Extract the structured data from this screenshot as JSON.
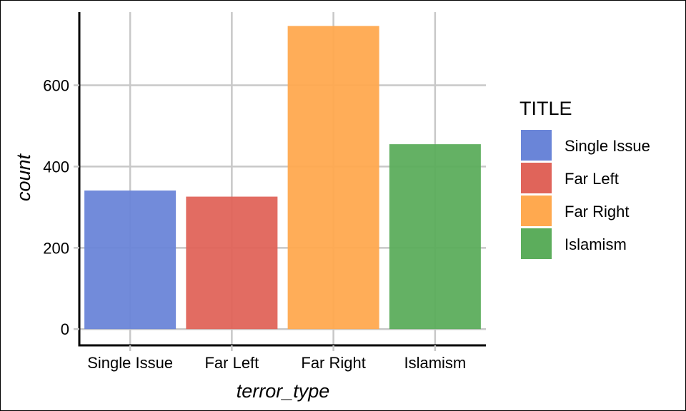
{
  "chart_data": {
    "type": "bar",
    "categories": [
      "Single Issue",
      "Far Left",
      "Far Right",
      "Islamism"
    ],
    "values": [
      341,
      326,
      746,
      455
    ],
    "xlabel": "terror_type",
    "ylabel": "count",
    "ylim": [
      -40,
      780
    ],
    "yticks": [
      0,
      200,
      400,
      600
    ],
    "grid": true,
    "legend": {
      "title": "TITLE",
      "placement": "right",
      "entries": [
        "Single Issue",
        "Far Left",
        "Far Right",
        "Islamism"
      ]
    },
    "colors": [
      "#6a85d8",
      "#e0645a",
      "#ffa94f",
      "#5cad5c"
    ]
  }
}
